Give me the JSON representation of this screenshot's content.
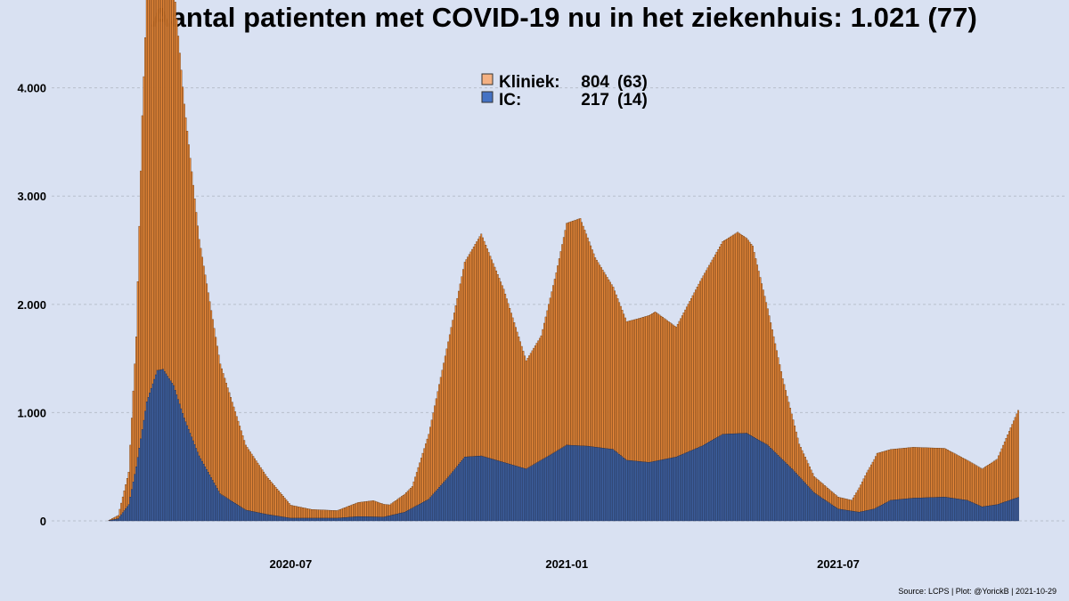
{
  "title": "Aantal patienten met COVID-19 nu in het ziekenhuis: 1.021  (77)",
  "source": "Source: LCPS | Plot: @YorickB |  2021-10-29",
  "colors": {
    "background": "#d9e1f2",
    "kliniek": "#e8893a",
    "kliniek_edge": "#5c2e08",
    "ic": "#3d5f9e",
    "ic_edge": "#1c2c50",
    "grid": "#b8bfcc",
    "legend_kliniek": "#f4b183",
    "legend_ic": "#4472c4"
  },
  "legend": [
    {
      "name": "Kliniek:",
      "value": "804",
      "delta": "(63)"
    },
    {
      "name": "IC:",
      "value": "217",
      "delta": "(14)"
    }
  ],
  "chart_data": {
    "type": "bar",
    "stacked": true,
    "title": "Aantal patienten met COVID-19 nu in het ziekenhuis: 1.021  (77)",
    "x_start": "2020-03-01",
    "x_end": "2021-10-29",
    "xticks": [
      {
        "date": "2020-07-01",
        "label": "2020-07"
      },
      {
        "date": "2021-01-01",
        "label": "2021-01"
      },
      {
        "date": "2021-07-01",
        "label": "2021-07"
      }
    ],
    "ylim": [
      0,
      4400
    ],
    "yticks": [
      {
        "value": 0,
        "label": "0"
      },
      {
        "value": 1000,
        "label": "1.000"
      },
      {
        "value": 2000,
        "label": "2.000"
      },
      {
        "value": 3000,
        "label": "3.000"
      },
      {
        "value": 4000,
        "label": "4.000"
      }
    ],
    "grid": "horizontal dashed",
    "legend_position": "top-center",
    "series": [
      {
        "name": "IC",
        "color": "#3d5f9e",
        "points": [
          [
            "2020-03-01",
            0
          ],
          [
            "2020-03-08",
            20
          ],
          [
            "2020-03-15",
            150
          ],
          [
            "2020-03-20",
            500
          ],
          [
            "2020-03-27",
            1100
          ],
          [
            "2020-04-03",
            1390
          ],
          [
            "2020-04-07",
            1400
          ],
          [
            "2020-04-14",
            1250
          ],
          [
            "2020-04-21",
            950
          ],
          [
            "2020-05-01",
            600
          ],
          [
            "2020-05-15",
            250
          ],
          [
            "2020-06-01",
            100
          ],
          [
            "2020-06-15",
            60
          ],
          [
            "2020-07-01",
            25
          ],
          [
            "2020-08-01",
            25
          ],
          [
            "2020-08-15",
            40
          ],
          [
            "2020-09-01",
            35
          ],
          [
            "2020-09-15",
            80
          ],
          [
            "2020-10-01",
            200
          ],
          [
            "2020-10-15",
            420
          ],
          [
            "2020-10-25",
            590
          ],
          [
            "2020-11-05",
            600
          ],
          [
            "2020-11-20",
            540
          ],
          [
            "2020-12-05",
            480
          ],
          [
            "2020-12-20",
            600
          ],
          [
            "2021-01-01",
            700
          ],
          [
            "2021-01-15",
            690
          ],
          [
            "2021-02-01",
            660
          ],
          [
            "2021-02-10",
            560
          ],
          [
            "2021-02-25",
            540
          ],
          [
            "2021-03-15",
            590
          ],
          [
            "2021-04-01",
            690
          ],
          [
            "2021-04-15",
            800
          ],
          [
            "2021-05-01",
            810
          ],
          [
            "2021-05-15",
            700
          ],
          [
            "2021-06-01",
            470
          ],
          [
            "2021-06-15",
            260
          ],
          [
            "2021-07-01",
            110
          ],
          [
            "2021-07-15",
            80
          ],
          [
            "2021-07-25",
            110
          ],
          [
            "2021-08-05",
            190
          ],
          [
            "2021-08-20",
            210
          ],
          [
            "2021-09-10",
            220
          ],
          [
            "2021-09-25",
            190
          ],
          [
            "2021-10-05",
            130
          ],
          [
            "2021-10-15",
            150
          ],
          [
            "2021-10-29",
            217
          ]
        ]
      },
      {
        "name": "Kliniek",
        "color": "#e8893a",
        "points": [
          [
            "2020-03-01",
            0
          ],
          [
            "2020-03-08",
            30
          ],
          [
            "2020-03-15",
            300
          ],
          [
            "2020-03-20",
            1200
          ],
          [
            "2020-03-24",
            2900
          ],
          [
            "2020-03-28",
            4000
          ],
          [
            "2020-03-31",
            4350
          ],
          [
            "2020-04-07",
            4300
          ],
          [
            "2020-04-14",
            3700
          ],
          [
            "2020-04-21",
            2900
          ],
          [
            "2020-05-01",
            2000
          ],
          [
            "2020-05-15",
            1200
          ],
          [
            "2020-06-01",
            600
          ],
          [
            "2020-06-15",
            350
          ],
          [
            "2020-07-01",
            120
          ],
          [
            "2020-07-15",
            80
          ],
          [
            "2020-08-01",
            70
          ],
          [
            "2020-08-15",
            130
          ],
          [
            "2020-08-25",
            150
          ],
          [
            "2020-09-05",
            100
          ],
          [
            "2020-09-20",
            200
          ],
          [
            "2020-10-01",
            600
          ],
          [
            "2020-10-15",
            1300
          ],
          [
            "2020-10-25",
            1800
          ],
          [
            "2020-11-05",
            2050
          ],
          [
            "2020-11-20",
            1600
          ],
          [
            "2020-12-05",
            1000
          ],
          [
            "2020-12-15",
            1150
          ],
          [
            "2020-12-25",
            1650
          ],
          [
            "2021-01-01",
            2050
          ],
          [
            "2021-01-10",
            2100
          ],
          [
            "2021-01-20",
            1750
          ],
          [
            "2021-02-01",
            1500
          ],
          [
            "2021-02-10",
            1280
          ],
          [
            "2021-02-20",
            1330
          ],
          [
            "2021-03-01",
            1380
          ],
          [
            "2021-03-15",
            1200
          ],
          [
            "2021-04-01",
            1550
          ],
          [
            "2021-04-15",
            1780
          ],
          [
            "2021-04-25",
            1860
          ],
          [
            "2021-05-05",
            1760
          ],
          [
            "2021-05-15",
            1260
          ],
          [
            "2021-05-25",
            750
          ],
          [
            "2021-06-05",
            300
          ],
          [
            "2021-06-15",
            150
          ],
          [
            "2021-07-01",
            110
          ],
          [
            "2021-07-10",
            100
          ],
          [
            "2021-07-20",
            350
          ],
          [
            "2021-07-27",
            500
          ],
          [
            "2021-08-05",
            470
          ],
          [
            "2021-08-20",
            470
          ],
          [
            "2021-09-10",
            450
          ],
          [
            "2021-09-25",
            370
          ],
          [
            "2021-10-05",
            350
          ],
          [
            "2021-10-15",
            420
          ],
          [
            "2021-10-29",
            804
          ]
        ]
      }
    ]
  }
}
